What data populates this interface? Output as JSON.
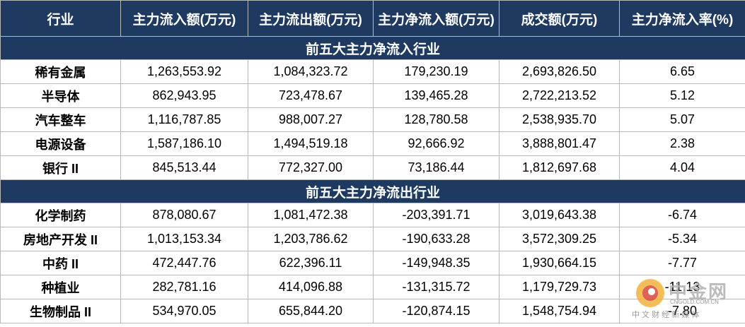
{
  "table": {
    "headers": [
      "行业",
      "主力流入额(万元)",
      "主力流出额(万元)",
      "主力净流入额(万元)",
      "成交额(万元)",
      "主力净流入率(%)"
    ],
    "sections": [
      {
        "title": "前五大主力净流入行业",
        "rows": [
          [
            "稀有金属",
            "1,263,553.92",
            "1,084,323.72",
            "179,230.19",
            "2,693,826.50",
            "6.65"
          ],
          [
            "半导体",
            "862,943.95",
            "723,478.67",
            "139,465.28",
            "2,722,213.52",
            "5.12"
          ],
          [
            "汽车整车",
            "1,116,787.85",
            "988,007.27",
            "128,780.58",
            "2,538,935.70",
            "5.07"
          ],
          [
            "电源设备",
            "1,587,186.10",
            "1,494,519.18",
            "92,666.92",
            "3,888,801.47",
            "2.38"
          ],
          [
            "银行 II",
            "845,513.44",
            "772,327.00",
            "73,186.44",
            "1,812,697.68",
            "4.04"
          ]
        ]
      },
      {
        "title": "前五大主力净流出行业",
        "rows": [
          [
            "化学制药",
            "878,080.67",
            "1,081,472.38",
            "-203,391.71",
            "3,019,643.38",
            "-6.74"
          ],
          [
            "房地产开发 II",
            "1,013,153.34",
            "1,203,786.62",
            "-190,633.28",
            "3,572,309.25",
            "-5.34"
          ],
          [
            "中药 II",
            "472,447.76",
            "622,396.11",
            "-149,948.35",
            "1,930,664.15",
            "-7.77"
          ],
          [
            "种植业",
            "282,781.16",
            "414,096.88",
            "-131,315.72",
            "1,179,729.73",
            "-11.13"
          ],
          [
            "生物制品 II",
            "534,970.05",
            "655,844.20",
            "-120,874.15",
            "1,548,754.94",
            "-7.80"
          ]
        ]
      }
    ]
  },
  "watermark": {
    "name": "中金网",
    "domain": "CNGOLD.COM.CN",
    "slogan": "中 文 财 经 新 媒 体"
  }
}
